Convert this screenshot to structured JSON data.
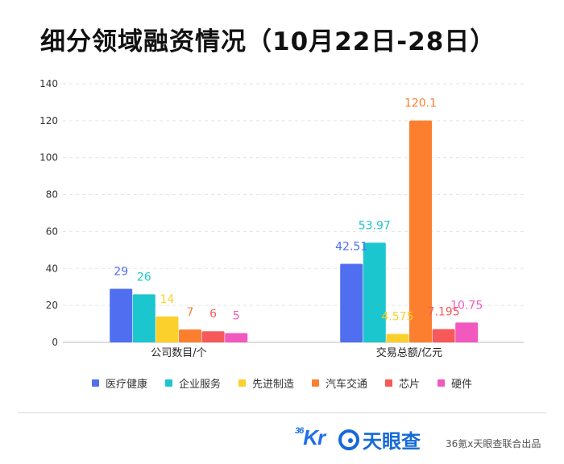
{
  "title": "细分领域融资情况（10月22日-28日）",
  "chart_data": {
    "type": "bar",
    "categories": [
      "公司数目/个",
      "交易总额/亿元"
    ],
    "series": [
      {
        "name": "医疗健康",
        "color": "#4f6ff0",
        "values": [
          29,
          42.51
        ],
        "labels": [
          "29",
          "42.51"
        ]
      },
      {
        "name": "企业服务",
        "color": "#1cc6cf",
        "values": [
          26,
          53.97
        ],
        "labels": [
          "26",
          "53.97"
        ]
      },
      {
        "name": "先进制造",
        "color": "#fcd02c",
        "values": [
          14,
          4.575
        ],
        "labels": [
          "14",
          "4.575"
        ]
      },
      {
        "name": "汽车交通",
        "color": "#fc7f30",
        "values": [
          7,
          120.1
        ],
        "labels": [
          "7",
          "120.1"
        ]
      },
      {
        "name": "芯片",
        "color": "#f6595a",
        "values": [
          6,
          7.195
        ],
        "labels": [
          "6",
          "7.195"
        ]
      },
      {
        "name": "硬件",
        "color": "#f159be",
        "values": [
          5,
          10.75
        ],
        "labels": [
          "5",
          "10.75"
        ]
      }
    ],
    "yticks": [
      0,
      20,
      40,
      60,
      80,
      100,
      120,
      140
    ],
    "ylim": [
      0,
      140
    ],
    "grid": true,
    "legend_position": "bottom"
  },
  "footer": {
    "logo_36kr_num": "36",
    "logo_36kr_suffix": "Kr",
    "logo_tyc": "天眼查",
    "credit": "36氪x天眼查联合出品"
  }
}
